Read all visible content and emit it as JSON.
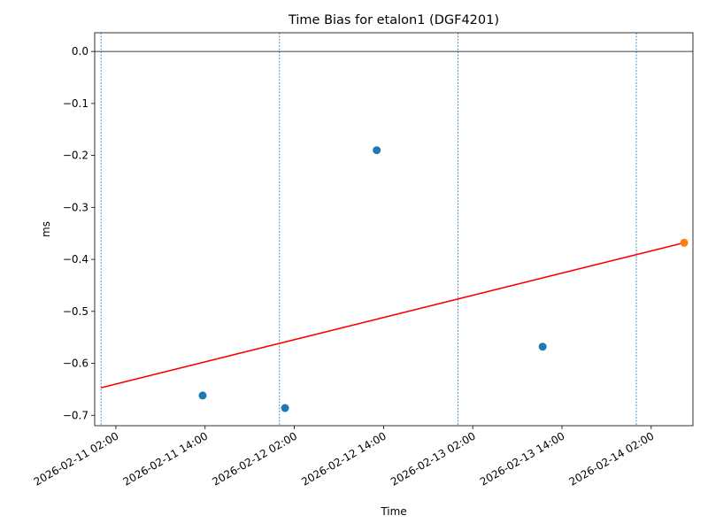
{
  "chart_data": {
    "type": "scatter",
    "title": "Time Bias for etalon1 (DGF4201)",
    "x_label": "Time",
    "y_label": "ms",
    "xlim": [
      "2026-02-10 23:09",
      "2026-02-14 07:37"
    ],
    "ylim": [
      -0.72,
      0.036
    ],
    "xticks": [
      "2026-02-11 02:00",
      "2026-02-11 14:00",
      "2026-02-12 02:00",
      "2026-02-12 14:00",
      "2026-02-13 02:00",
      "2026-02-13 14:00",
      "2026-02-14 02:00"
    ],
    "yticks": [
      {
        "value": 0,
        "label": "0.0"
      },
      {
        "value": -0.1,
        "label": "−0.1"
      },
      {
        "value": -0.2,
        "label": "−0.2"
      },
      {
        "value": -0.3,
        "label": "−0.3"
      },
      {
        "value": -0.4,
        "label": "−0.4"
      },
      {
        "value": -0.5,
        "label": "−0.5"
      },
      {
        "value": -0.6,
        "label": "−0.6"
      },
      {
        "value": -0.7,
        "label": "−0.7"
      }
    ],
    "hline": 0,
    "vlines": [
      "2026-02-11 00:00",
      "2026-02-12 00:00",
      "2026-02-13 00:00",
      "2026-02-14 00:00"
    ],
    "series": [
      {
        "kind": "points",
        "color": "#1f77b4",
        "x": [
          "2026-02-11 13:40",
          "2026-02-12 00:45",
          "2026-02-12 13:05",
          "2026-02-13 11:24"
        ],
        "values": [
          -0.662,
          -0.686,
          -0.19,
          -0.568
        ]
      },
      {
        "kind": "line",
        "color": "#ff0000",
        "x": [
          "2026-02-11 00:00",
          "2026-02-14 06:26"
        ],
        "values": [
          -0.647,
          -0.368
        ]
      },
      {
        "kind": "points",
        "color": "#ff7f0e",
        "x": [
          "2026-02-14 06:26"
        ],
        "values": [
          -0.368
        ]
      }
    ]
  }
}
